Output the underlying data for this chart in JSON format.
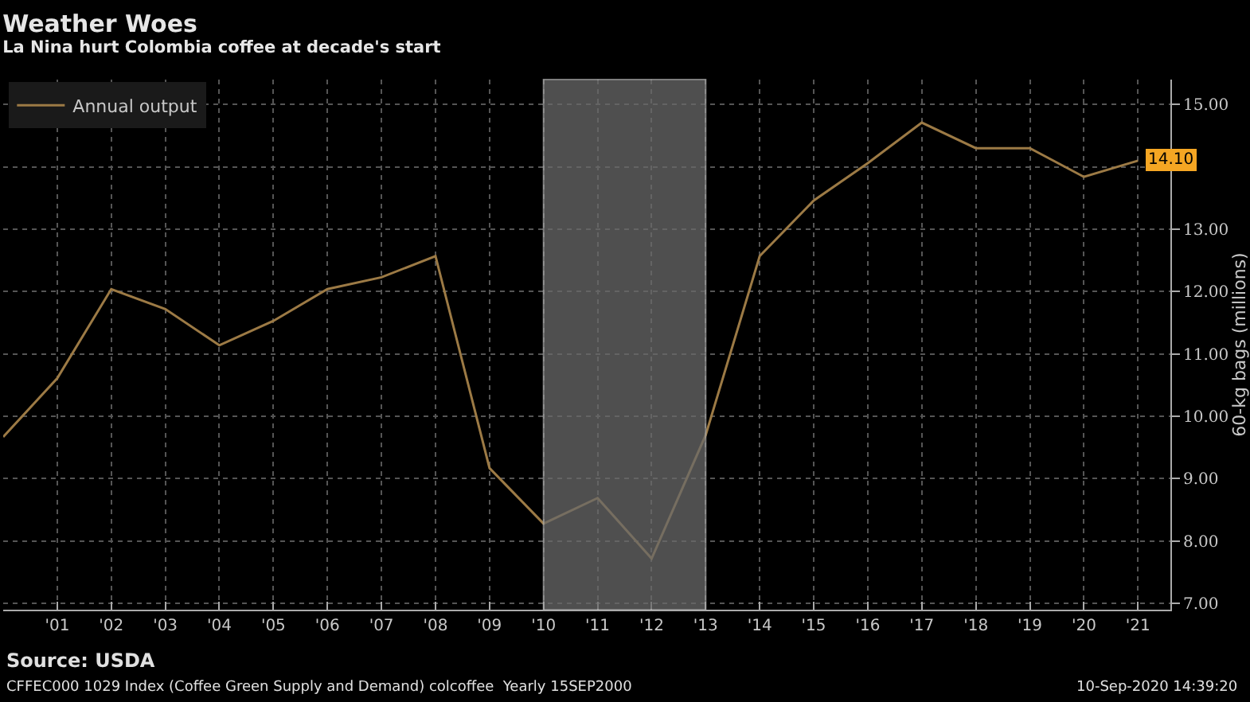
{
  "chart_data": {
    "type": "line",
    "title": "Weather Woes",
    "subtitle": "La Nina hurt Colombia coffee at decade's start",
    "ylabel": "60-kg bags (millions)",
    "x": [
      2000,
      2001,
      2002,
      2003,
      2004,
      2005,
      2006,
      2007,
      2008,
      2009,
      2010,
      2011,
      2012,
      2013,
      2014,
      2015,
      2016,
      2017,
      2018,
      2019,
      2020,
      2021
    ],
    "series": [
      {
        "name": "Annual output",
        "color": "#9c7a45",
        "values": [
          9.67,
          10.61,
          12.04,
          11.72,
          11.14,
          11.53,
          12.04,
          12.23,
          12.57,
          9.17,
          8.28,
          8.69,
          7.72,
          9.7,
          12.57,
          13.46,
          14.06,
          14.71,
          14.3,
          14.3,
          13.84,
          14.1
        ],
        "value_labels": [
          null,
          null,
          null,
          null,
          null,
          null,
          null,
          null,
          null,
          null,
          null,
          null,
          null,
          null,
          null,
          null,
          null,
          null,
          null,
          null,
          null,
          "14.10"
        ]
      }
    ],
    "xlim": [
      2000,
      2021.6
    ],
    "xticks": [
      {
        "value": 2001,
        "label": "'01"
      },
      {
        "value": 2002,
        "label": "'02"
      },
      {
        "value": 2003,
        "label": "'03"
      },
      {
        "value": 2004,
        "label": "'04"
      },
      {
        "value": 2005,
        "label": "'05"
      },
      {
        "value": 2006,
        "label": "'06"
      },
      {
        "value": 2007,
        "label": "'07"
      },
      {
        "value": 2008,
        "label": "'08"
      },
      {
        "value": 2009,
        "label": "'09"
      },
      {
        "value": 2010,
        "label": "'10"
      },
      {
        "value": 2011,
        "label": "'11"
      },
      {
        "value": 2012,
        "label": "'12"
      },
      {
        "value": 2013,
        "label": "'13"
      },
      {
        "value": 2014,
        "label": "'14"
      },
      {
        "value": 2015,
        "label": "'15"
      },
      {
        "value": 2016,
        "label": "'16"
      },
      {
        "value": 2017,
        "label": "'17"
      },
      {
        "value": 2018,
        "label": "'18"
      },
      {
        "value": 2019,
        "label": "'19"
      },
      {
        "value": 2020,
        "label": "'20"
      },
      {
        "value": 2021,
        "label": "'21"
      }
    ],
    "ylim": [
      6.9,
      15.4
    ],
    "yticks": [
      {
        "value": 7,
        "label": "7.00"
      },
      {
        "value": 8,
        "label": "8.00"
      },
      {
        "value": 9,
        "label": "9.00"
      },
      {
        "value": 10,
        "label": "10.00"
      },
      {
        "value": 11,
        "label": "11.00"
      },
      {
        "value": 12,
        "label": "12.00"
      },
      {
        "value": 13,
        "label": "13.00"
      },
      {
        "value": 14,
        "label": null
      },
      {
        "value": 15,
        "label": "15.00"
      }
    ],
    "bands": [
      {
        "axis": "x",
        "from": 2010,
        "to": 2013,
        "color": "#6a6a6a"
      }
    ],
    "annotations": [
      "Source: USDA",
      "CFFEC000 1029 Index (Coffee Green Supply and Demand) colcoffee  Yearly 15SEP2000",
      "10-Sep-2020 14:39:20"
    ],
    "grid": true,
    "legend": "top left",
    "marker": "none",
    "line_style": "solid"
  }
}
